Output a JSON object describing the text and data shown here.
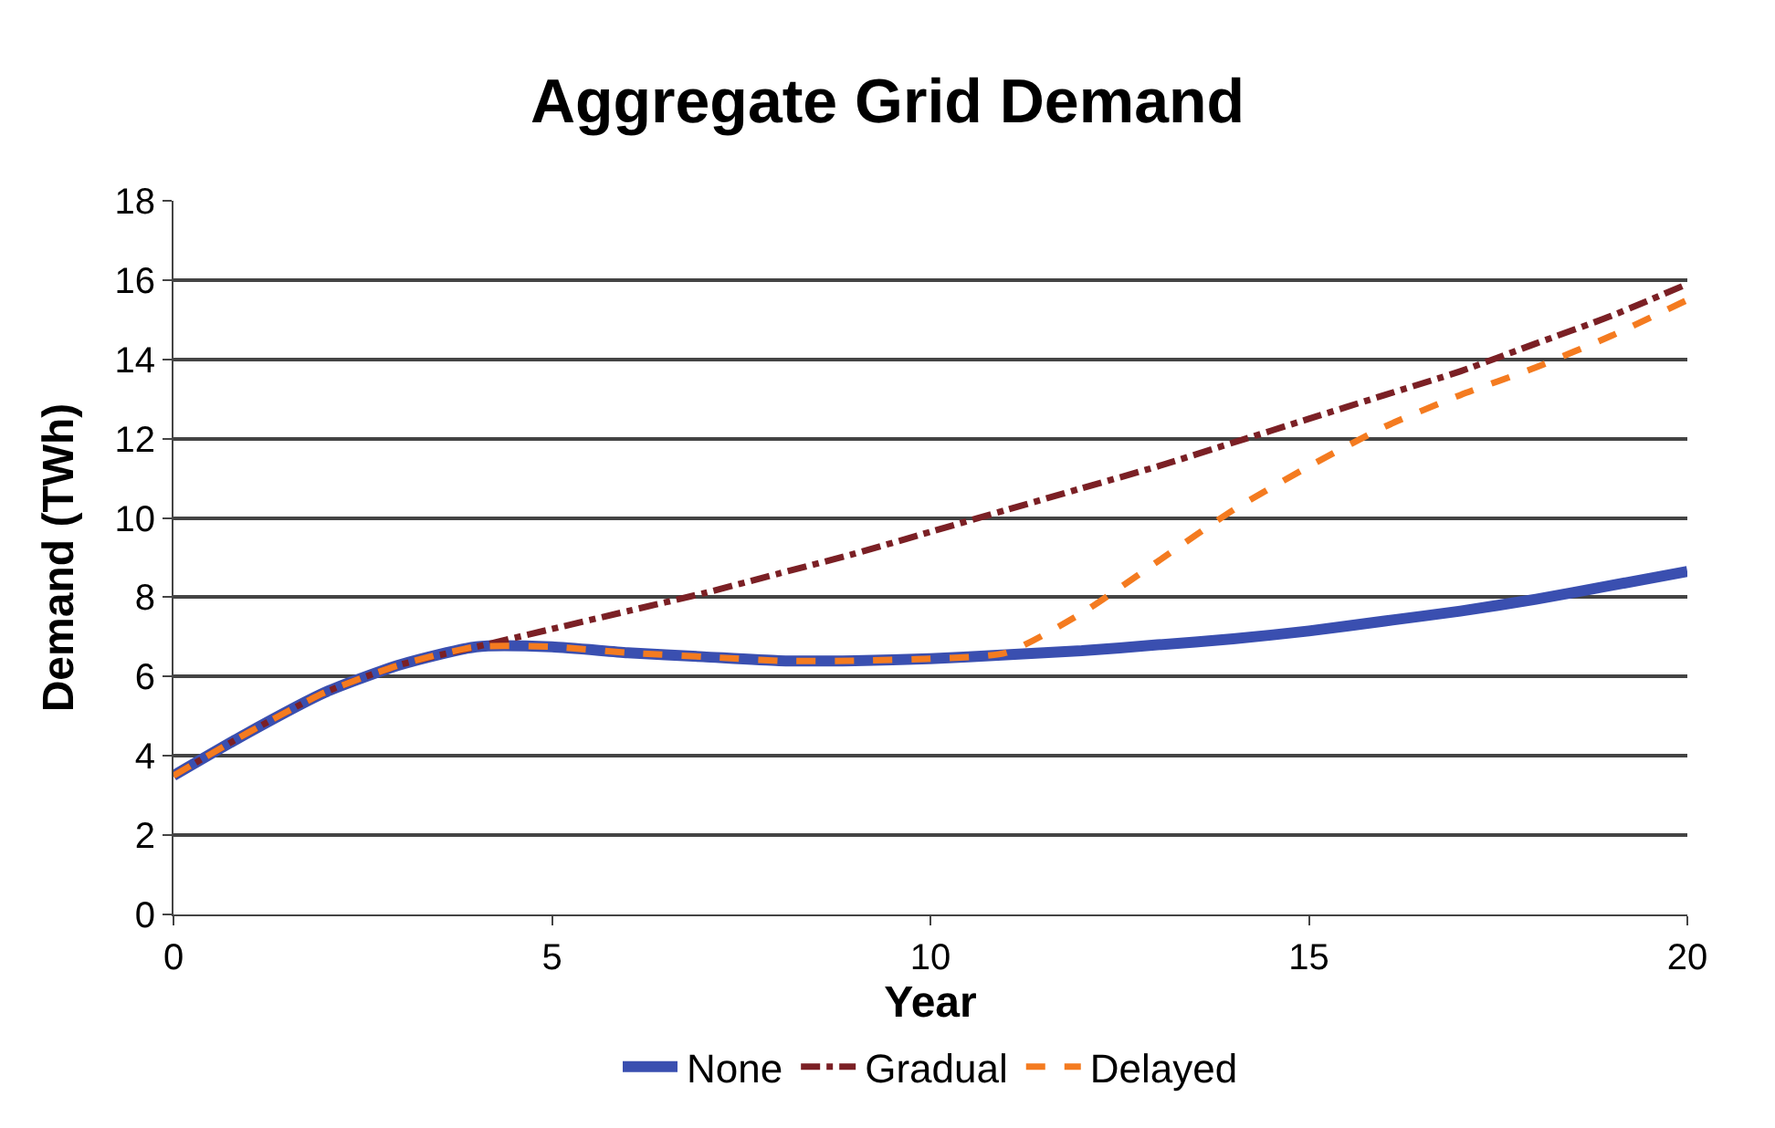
{
  "chart_data": {
    "type": "line",
    "title": "Aggregate Grid Demand",
    "xlabel": "Year",
    "ylabel": "Demand (TWh)",
    "x": [
      0,
      1,
      2,
      3,
      4,
      5,
      6,
      7,
      8,
      9,
      10,
      11,
      12,
      13,
      14,
      15,
      16,
      17,
      18,
      19,
      20
    ],
    "series": [
      {
        "name": "None",
        "color": "#3a4fb0",
        "line_style": "solid",
        "values": [
          3.5,
          4.6,
          5.6,
          6.3,
          6.75,
          6.75,
          6.6,
          6.5,
          6.4,
          6.4,
          6.45,
          6.55,
          6.65,
          6.8,
          6.95,
          7.15,
          7.4,
          7.65,
          7.95,
          8.3,
          8.65
        ]
      },
      {
        "name": "Gradual",
        "color": "#7b2025",
        "line_style": "dashdot",
        "values": [
          3.5,
          4.6,
          5.6,
          6.3,
          6.75,
          7.2,
          7.65,
          8.1,
          8.6,
          9.1,
          9.65,
          10.2,
          10.75,
          11.3,
          11.9,
          12.5,
          13.1,
          13.7,
          14.4,
          15.1,
          15.9
        ]
      },
      {
        "name": "Delayed",
        "color": "#f47b20",
        "line_style": "dashed",
        "values": [
          3.5,
          4.6,
          5.6,
          6.3,
          6.75,
          6.75,
          6.6,
          6.5,
          6.4,
          6.4,
          6.45,
          6.6,
          7.6,
          8.9,
          10.2,
          11.3,
          12.3,
          13.1,
          13.8,
          14.6,
          15.5
        ]
      }
    ],
    "xlim": [
      0,
      20
    ],
    "xticks": [
      0,
      5,
      10,
      15,
      20
    ],
    "ylim": [
      0,
      18
    ],
    "yticks": [
      0,
      2,
      4,
      6,
      8,
      10,
      12,
      14,
      16,
      18
    ],
    "grid": "y",
    "legend": "bottom",
    "marker": "none"
  }
}
